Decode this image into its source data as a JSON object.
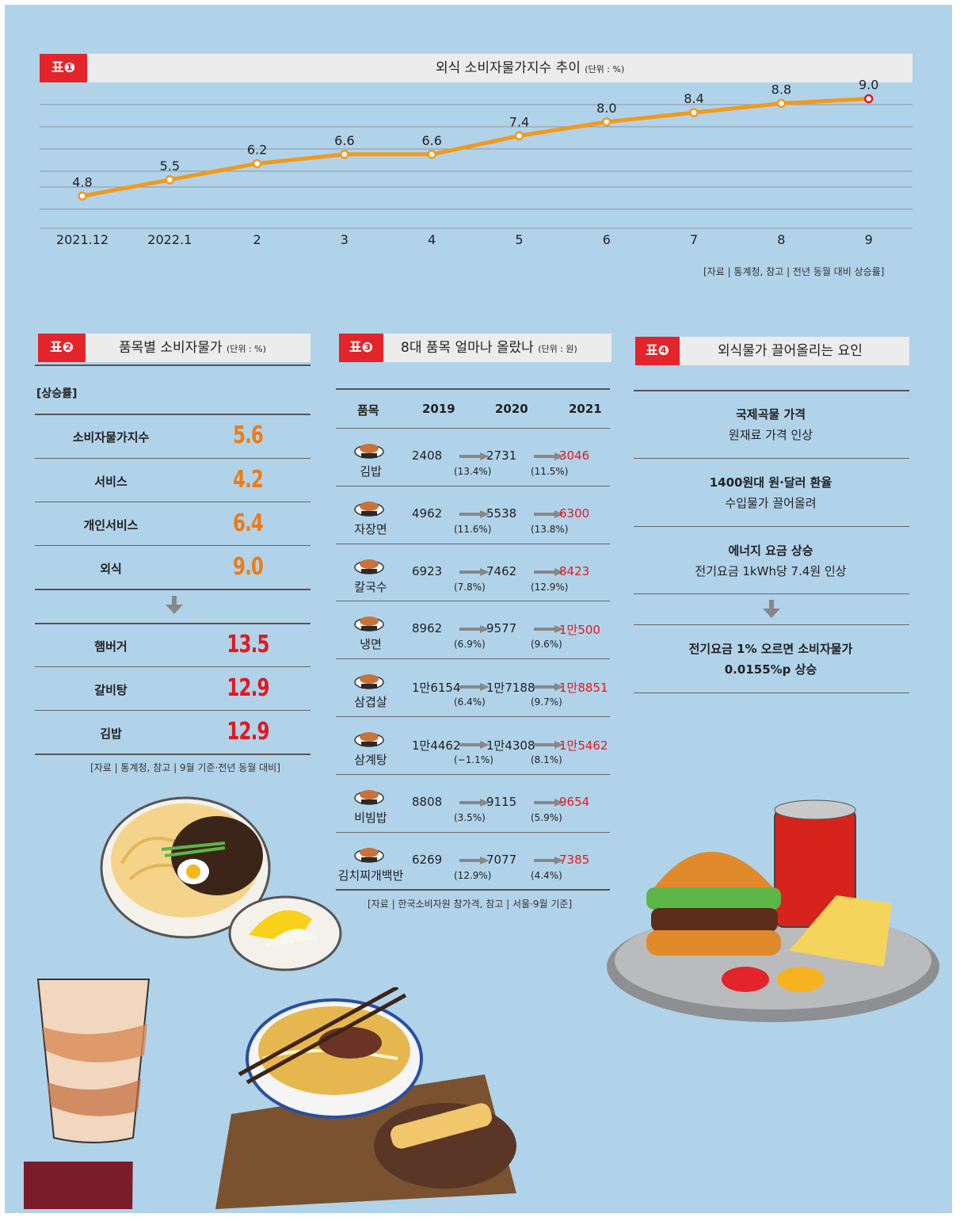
{
  "table1": {
    "tag": "표❶",
    "title": "외식 소비자물가지수 추이",
    "unit": "(단위 : %)",
    "source": "[자료 | 통계청, 참고 | 전년 동월 대비 상승률]"
  },
  "chart_data": {
    "type": "line",
    "title": "외식 소비자물가지수 추이",
    "x": [
      "2021.12",
      "2022.1",
      "2",
      "3",
      "4",
      "5",
      "6",
      "7",
      "8",
      "9"
    ],
    "series": [
      {
        "values": [
          4.8,
          5.5,
          6.2,
          6.6,
          6.6,
          7.4,
          8.0,
          8.4,
          8.8,
          9.0
        ]
      }
    ],
    "value_labels": [
      "4.8",
      "5.5",
      "6.2",
      "6.6",
      "6.6",
      "7.4",
      "8.0",
      "8.4",
      "8.8",
      "9.0"
    ],
    "ylim": [
      3.0,
      9.5
    ],
    "grid": true,
    "line_color": "#f29a1b",
    "last_point_color": "#e0191f"
  },
  "table2": {
    "tag": "표❷",
    "title": "품목별 소비자물가",
    "unit": "(단위 : %)",
    "subheader": "[상승률]",
    "rows_top": [
      {
        "label": "소비자물가지수",
        "value": "5.6"
      },
      {
        "label": "서비스",
        "value": "4.2"
      },
      {
        "label": "개인서비스",
        "value": "6.4"
      },
      {
        "label": "외식",
        "value": "9.0"
      }
    ],
    "rows_bottom": [
      {
        "label": "햄버거",
        "value": "13.5"
      },
      {
        "label": "갈비탕",
        "value": "12.9"
      },
      {
        "label": "김밥",
        "value": "12.9"
      }
    ],
    "source": "[자료 | 통계청, 참고 | 9월 기준·전년 동월 대비]",
    "top_color": "#ef7b12",
    "bottom_color": "#e0191f"
  },
  "table3": {
    "tag": "표❸",
    "title": "8대 품목 얼마나 올랐나",
    "unit": "(단위 : 원)",
    "headers": [
      "품목",
      "2019",
      "2020",
      "2021"
    ],
    "rows": [
      {
        "name": "김밥",
        "v2019": "2408",
        "v2020": "2731",
        "v2021": "3046",
        "p1": "(13.4%)",
        "p2": "(11.5%)",
        "icon": "gimbap-icon"
      },
      {
        "name": "자장면",
        "v2019": "4962",
        "v2020": "5538",
        "v2021": "6300",
        "p1": "(11.6%)",
        "p2": "(13.8%)",
        "icon": "jajangmyeon-icon"
      },
      {
        "name": "칼국수",
        "v2019": "6923",
        "v2020": "7462",
        "v2021": "8423",
        "p1": "(7.8%)",
        "p2": "(12.9%)",
        "icon": "kalguksu-icon"
      },
      {
        "name": "냉면",
        "v2019": "8962",
        "v2020": "9577",
        "v2021": "1만500",
        "p1": "(6.9%)",
        "p2": "(9.6%)",
        "icon": "naengmyeon-icon"
      },
      {
        "name": "삼겹살",
        "v2019": "1만6154",
        "v2020": "1만7188",
        "v2021": "1만8851",
        "p1": "(6.4%)",
        "p2": "(9.7%)",
        "icon": "samgyeopsal-icon"
      },
      {
        "name": "삼계탕",
        "v2019": "1만4462",
        "v2020": "1만4308",
        "v2021": "1만5462",
        "p1": "(−1.1%)",
        "p2": "(8.1%)",
        "icon": "samgyetang-icon"
      },
      {
        "name": "비빔밥",
        "v2019": "8808",
        "v2020": "9115",
        "v2021": "9654",
        "p1": "(3.5%)",
        "p2": "(5.9%)",
        "icon": "bibimbap-icon"
      },
      {
        "name": "김치찌개백반",
        "v2019": "6269",
        "v2020": "7077",
        "v2021": "7385",
        "p1": "(12.9%)",
        "p2": "(4.4%)",
        "icon": "kimchi-jjigae-icon"
      }
    ],
    "source": "[자료 | 한국소비자원 참가격, 참고 | 서울·9월 기준]",
    "highlight_color": "#e0191f"
  },
  "table4": {
    "tag": "표❹",
    "title": "외식물가 끌어올리는 요인",
    "items": [
      {
        "head": "국제곡물 가격",
        "body": "원재료 가격 인상"
      },
      {
        "head": "1400원대 원·달러 환율",
        "body": "수입물가 끌어올려"
      },
      {
        "head": "에너지 요금 상승",
        "body": "전기요금 1kWh당 7.4원 인상"
      }
    ],
    "conclusion": [
      "전기요금 1% 오르면 소비자물가",
      "0.0155%p 상승"
    ]
  },
  "illustrations": [
    "jajangmyeon-illustration",
    "iced-coffee-illustration",
    "noodle-soup-illustration",
    "burger-set-illustration"
  ]
}
